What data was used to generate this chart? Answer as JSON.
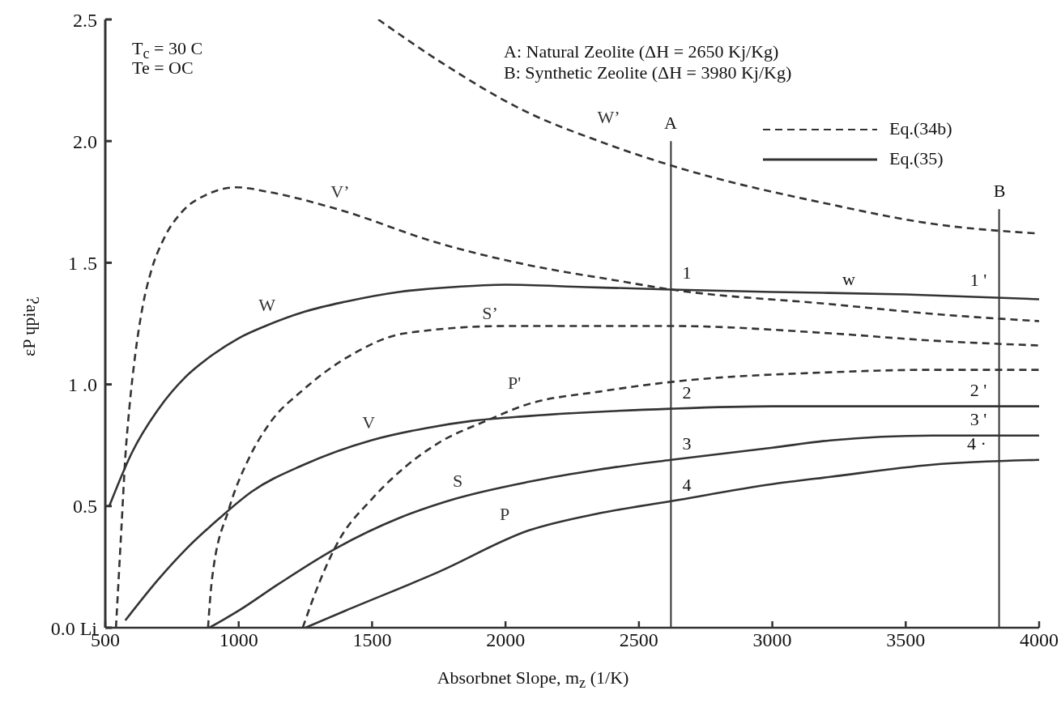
{
  "chart_data": {
    "type": "line",
    "xlabel": "Absorbnet Slope, m$_{z}$ (1/K)",
    "ylabel": "εP ɥpiɐ¿",
    "xlim": [
      500,
      4000
    ],
    "xticks": [
      500,
      1000,
      1500,
      2000,
      2500,
      3000,
      3500,
      4000
    ],
    "ylim": [
      0,
      2.5
    ],
    "yticks": [
      {
        "value": 0,
        "label": "0.0 Li"
      },
      0.5,
      {
        "value": 1,
        "label": "1 .0"
      },
      {
        "value": 1.5,
        "label": "1 .5"
      },
      {
        "value": 2,
        "label": "2.0"
      },
      2.5
    ],
    "grid": false,
    "marker": "none",
    "series": [
      {
        "name": "W’",
        "color": "#333333",
        "line_style": "dashed",
        "x": [
          1523,
          1750,
          2079,
          2350,
          2620,
          3217,
          3600,
          4000
        ],
        "values": [
          2.5,
          2.33,
          2.12,
          2.0,
          1.9,
          1.74,
          1.66,
          1.62
        ]
      },
      {
        "name": "V’",
        "color": "#333333",
        "line_style": "dashed",
        "x": [
          540,
          550,
          561,
          575,
          590,
          612,
          640,
          673,
          720,
          788,
          880,
          992,
          1116,
          1371,
          1751,
          2088,
          2400,
          2620,
          3217,
          3600,
          4000
        ],
        "values": [
          0,
          0.2,
          0.42,
          0.7,
          0.9,
          1.12,
          1.32,
          1.47,
          1.6,
          1.71,
          1.78,
          1.81,
          1.79,
          1.72,
          1.58,
          1.49,
          1.43,
          1.39,
          1.33,
          1.29,
          1.26
        ]
      },
      {
        "name": "S’",
        "color": "#333333",
        "line_style": "dashed",
        "x": [
          885,
          900,
          964,
          1040,
          1116,
          1244,
          1420,
          1623,
          2003,
          2620,
          3217,
          3600,
          4000
        ],
        "values": [
          0,
          0.2,
          0.49,
          0.7,
          0.84,
          0.98,
          1.12,
          1.21,
          1.24,
          1.24,
          1.21,
          1.18,
          1.16
        ]
      },
      {
        "name": "P'",
        "color": "#333333",
        "line_style": "dashed",
        "x": [
          1240,
          1300,
          1371,
          1500,
          1623,
          1750,
          1927,
          2088,
          2350,
          2620,
          3217,
          3600,
          4000
        ],
        "values": [
          0,
          0.18,
          0.35,
          0.53,
          0.66,
          0.76,
          0.85,
          0.92,
          0.97,
          1.01,
          1.05,
          1.06,
          1.06
        ]
      },
      {
        "name": "W",
        "color": "#333333",
        "line_style": "solid",
        "x": [
          515,
          600,
          700,
          800,
          900,
          1000,
          1100,
          1250,
          1400,
          1600,
          1800,
          2000,
          2300,
          2620,
          3000,
          3500,
          4000
        ],
        "values": [
          0.5,
          0.72,
          0.9,
          1.03,
          1.12,
          1.19,
          1.24,
          1.3,
          1.34,
          1.38,
          1.4,
          1.41,
          1.4,
          1.39,
          1.38,
          1.37,
          1.35
        ]
      },
      {
        "name": "V",
        "color": "#333333",
        "line_style": "solid",
        "x": [
          575,
          700,
          800,
          928,
          1050,
          1244,
          1496,
          1700,
          1875,
          2088,
          2620,
          3000,
          4000
        ],
        "values": [
          0.03,
          0.2,
          0.32,
          0.45,
          0.56,
          0.67,
          0.77,
          0.82,
          0.85,
          0.87,
          0.9,
          0.91,
          0.91
        ]
      },
      {
        "name": "S",
        "color": "#333333",
        "line_style": "solid",
        "x": [
          890,
          1000,
          1150,
          1371,
          1600,
          1812,
          2088,
          2350,
          2620,
          3000,
          3217,
          3600,
          4000
        ],
        "values": [
          0,
          0.07,
          0.18,
          0.33,
          0.45,
          0.53,
          0.6,
          0.65,
          0.69,
          0.74,
          0.77,
          0.79,
          0.79
        ]
      },
      {
        "name": "P",
        "color": "#333333",
        "line_style": "solid",
        "x": [
          1250,
          1400,
          1751,
          2088,
          2350,
          2620,
          3000,
          3217,
          3600,
          4000
        ],
        "values": [
          0,
          0.07,
          0.23,
          0.4,
          0.47,
          0.52,
          0.59,
          0.62,
          0.67,
          0.69
        ]
      },
      {
        "color": "#333333",
        "line_style": "solid",
        "x": [
          2620,
          2620
        ],
        "values": [
          0,
          2.0
        ]
      },
      {
        "color": "#333333",
        "line_style": "solid",
        "x": [
          3850,
          3850
        ],
        "values": [
          0,
          1.72
        ]
      }
    ],
    "annotations": [
      "T$_{c}$ = 30 C",
      "Te = OC",
      "A: Natural Zeolite (ΔH = 2650 Kj/Kg)",
      "B: Synthetic Zeolite (ΔH = 3980 Kj/Kg)",
      "Eq.(34b)",
      "Eq.(35)",
      "w",
      "A",
      "B",
      "1",
      "1 '",
      "2",
      "2 '",
      "3",
      "3 '",
      "4",
      "4 ·"
    ]
  }
}
